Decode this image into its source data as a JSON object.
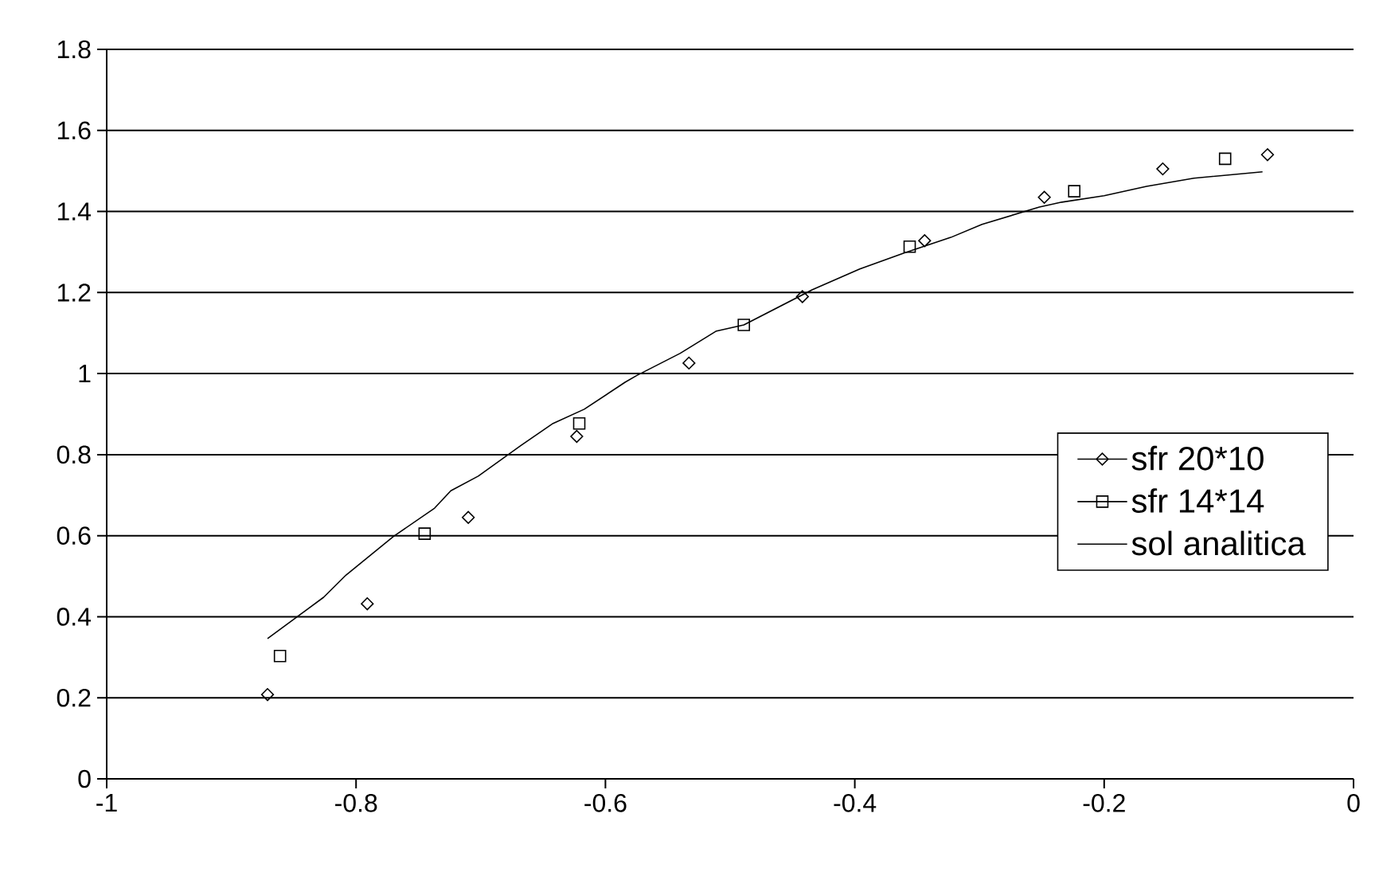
{
  "chart_data": {
    "type": "scatter",
    "series": [
      {
        "name": "sfr 20*10",
        "marker": "diamond",
        "color": "#000000",
        "x": [
          -0.871,
          -0.791,
          -0.71,
          -0.623,
          -0.533,
          -0.442,
          -0.344,
          -0.248,
          -0.153,
          -0.069
        ],
        "values": [
          0.208,
          0.432,
          0.645,
          0.845,
          1.026,
          1.19,
          1.328,
          1.435,
          1.505,
          1.54
        ]
      },
      {
        "name": "sfr 14*14",
        "marker": "square",
        "color": "#000000",
        "x": [
          -0.861,
          -0.745,
          -0.621,
          -0.489,
          -0.356,
          -0.224,
          -0.103
        ],
        "values": [
          0.303,
          0.605,
          0.877,
          1.12,
          1.313,
          1.45,
          1.53
        ]
      },
      {
        "name": "sol analitica",
        "type": "line",
        "marker": "none",
        "line_style": "solid",
        "color": "#000000",
        "x": [
          -0.871,
          -0.826,
          -0.808,
          -0.77,
          -0.737,
          -0.724,
          -0.702,
          -0.668,
          -0.642,
          -0.617,
          -0.584,
          -0.575,
          -0.54,
          -0.511,
          -0.489,
          -0.434,
          -0.396,
          -0.361,
          -0.323,
          -0.298,
          -0.252,
          -0.234,
          -0.2,
          -0.166,
          -0.128,
          -0.073
        ],
        "values": [
          0.346,
          0.448,
          0.503,
          0.598,
          0.668,
          0.711,
          0.747,
          0.822,
          0.877,
          0.912,
          0.979,
          0.995,
          1.05,
          1.105,
          1.12,
          1.207,
          1.258,
          1.297,
          1.336,
          1.368,
          1.411,
          1.423,
          1.439,
          1.462,
          1.482,
          1.498
        ]
      }
    ],
    "xlim": [
      -1,
      0
    ],
    "xticks": [
      -1,
      -0.8,
      -0.6,
      -0.4,
      -0.2,
      0
    ],
    "ylim": [
      0,
      1.8
    ],
    "yticks": [
      0,
      0.2,
      0.4,
      0.6,
      0.8,
      1,
      1.2,
      1.4,
      1.6,
      1.8
    ],
    "grid": "y",
    "legend": "right"
  }
}
